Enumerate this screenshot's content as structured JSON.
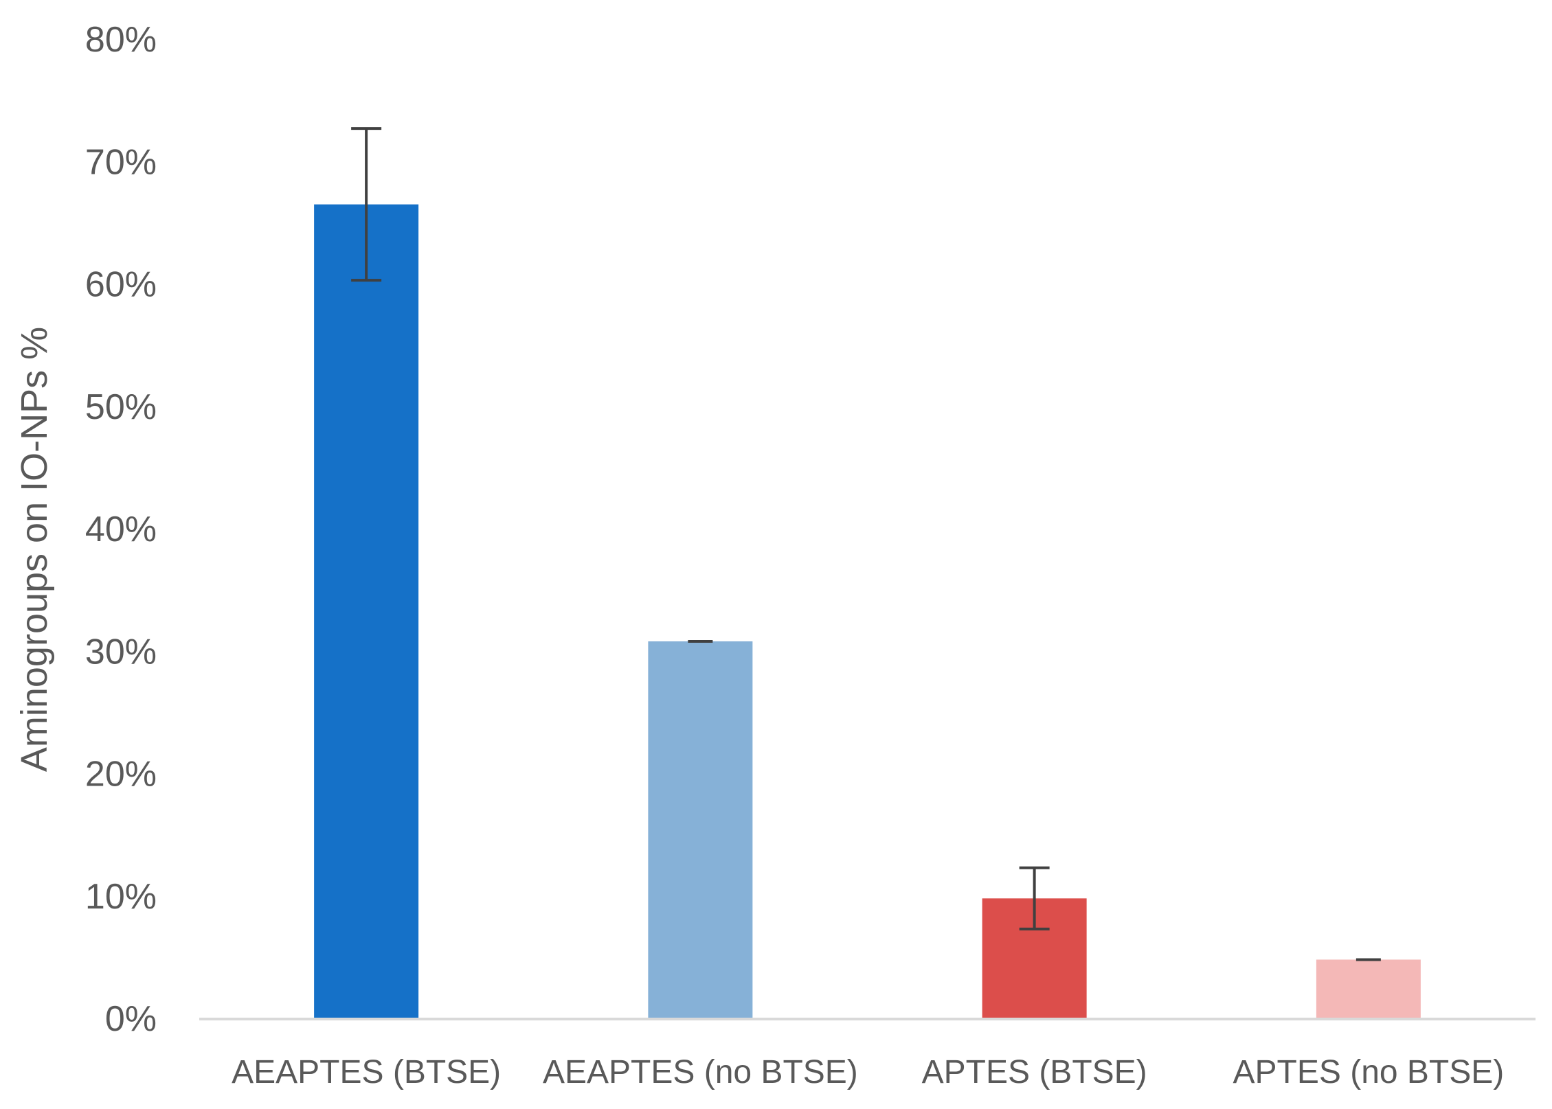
{
  "chart_data": {
    "type": "bar",
    "title": "",
    "xlabel": "",
    "ylabel": "Aminogroups on IO-NPs %",
    "ylim": [
      0,
      80
    ],
    "yticks": [
      "0%",
      "10%",
      "20%",
      "30%",
      "40%",
      "50%",
      "60%",
      "70%",
      "80%"
    ],
    "grid": false,
    "legend": "none",
    "categories": [
      "AEAPTES (BTSE)",
      "AEAPTES (no BTSE)",
      "APTES (BTSE)",
      "APTES (no BTSE)"
    ],
    "values": [
      66.5,
      30.8,
      9.8,
      4.8
    ],
    "errors": [
      6.2,
      0.0,
      2.5,
      0.0
    ],
    "colors": [
      "#1571C8",
      "#86B1D7",
      "#DC4E4B",
      "#F4B8B7"
    ],
    "axis_color": "#D9D9D9",
    "error_bar_color": "#404040"
  }
}
